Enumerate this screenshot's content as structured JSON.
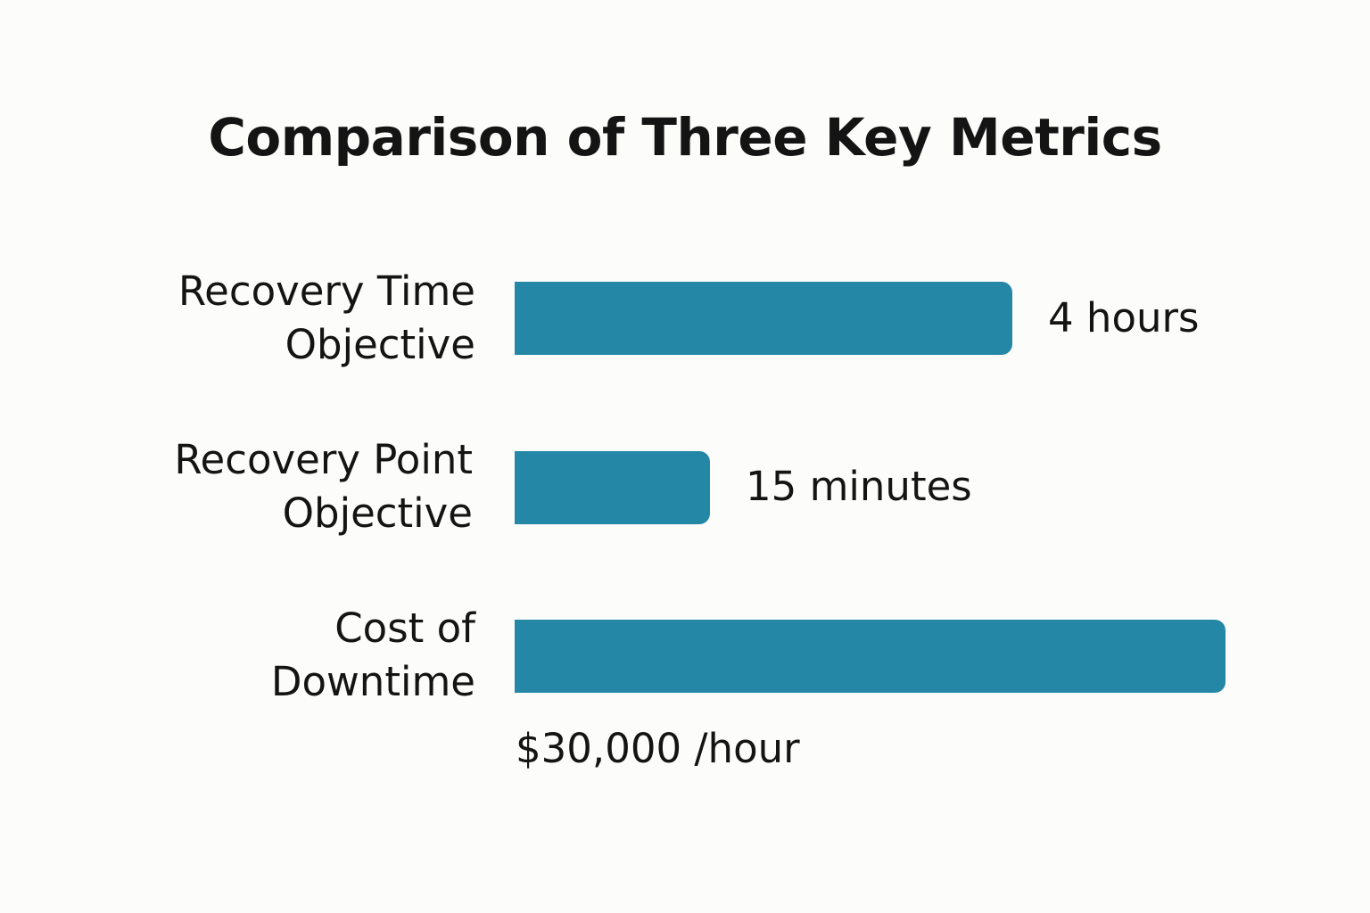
{
  "title": "Comparison of Three Key Metrics",
  "chart_data": {
    "type": "bar",
    "orientation": "horizontal",
    "title": "Comparison of Three Key Metrics",
    "categories": [
      {
        "line1": "Recovery Time",
        "line2": "Objective"
      },
      {
        "line1": "Recovery Point",
        "line2": "Objective"
      },
      {
        "line1": "Cost of",
        "line2": "Downtime"
      }
    ],
    "values": [
      0.7,
      0.275,
      1.0
    ],
    "value_labels": [
      "4 hours",
      "15 minutes",
      "$30,000 /hour"
    ],
    "bar_color": "#2587a6",
    "grid": false,
    "legend": "none"
  }
}
